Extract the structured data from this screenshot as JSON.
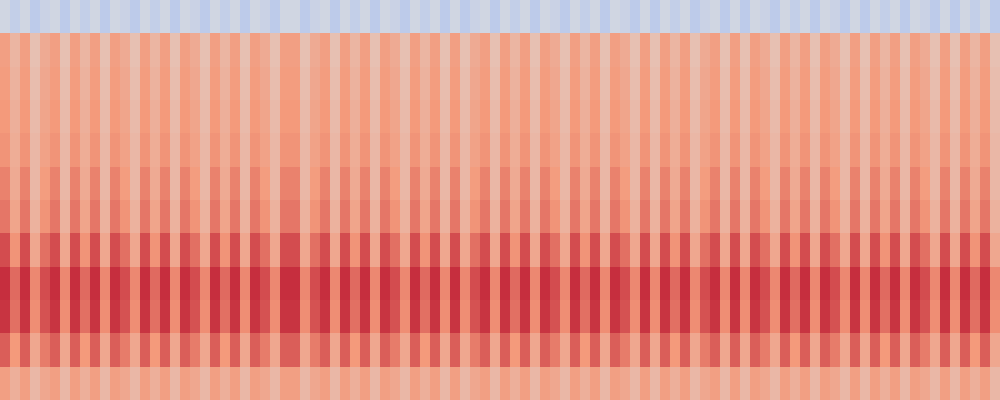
{
  "chart_data": {
    "type": "heatmap",
    "tick_labels": false,
    "grid": false,
    "zlim": [
      0,
      100
    ],
    "z": [
      [
        73,
        67,
        73,
        64,
        70,
        73,
        64,
        73,
        67,
        73,
        64,
        73,
        70,
        64,
        73,
        67,
        73,
        64,
        73,
        70,
        64,
        73,
        67,
        73,
        64,
        73,
        70,
        64,
        73,
        73,
        64,
        70,
        73,
        64,
        73,
        67,
        73,
        64,
        73,
        70,
        64,
        73,
        67,
        73,
        64,
        73,
        64,
        70,
        73,
        64,
        73,
        67,
        73,
        64,
        73,
        70,
        64,
        73,
        67,
        73,
        64,
        73,
        70,
        64,
        73,
        64,
        73,
        67,
        73,
        64,
        70,
        73,
        64,
        73,
        64,
        73,
        70,
        64,
        73,
        67,
        73,
        64,
        73,
        70,
        64,
        73,
        64,
        73,
        67,
        73,
        64,
        73,
        70,
        64,
        73,
        64,
        73,
        67,
        73,
        64
      ],
      [
        85,
        75,
        85,
        70,
        80,
        85,
        70,
        85,
        75,
        85,
        70,
        85,
        80,
        70,
        85,
        75,
        85,
        70,
        85,
        80,
        70,
        85,
        75,
        85,
        70,
        85,
        80,
        70,
        85,
        85,
        70,
        80,
        85,
        70,
        85,
        75,
        85,
        70,
        85,
        80,
        70,
        85,
        75,
        85,
        70,
        85,
        70,
        80,
        85,
        70,
        85,
        75,
        85,
        70,
        85,
        80,
        70,
        85,
        75,
        85,
        70,
        85,
        80,
        70,
        85,
        70,
        85,
        75,
        85,
        70,
        80,
        85,
        70,
        85,
        70,
        85,
        80,
        70,
        85,
        75,
        85,
        70,
        85,
        80,
        70,
        85,
        70,
        85,
        75,
        85,
        70,
        85,
        80,
        70,
        85,
        70,
        85,
        75,
        85,
        70
      ],
      [
        92,
        82,
        92,
        77,
        87,
        92,
        77,
        92,
        82,
        92,
        77,
        92,
        87,
        77,
        92,
        82,
        92,
        77,
        92,
        87,
        77,
        92,
        82,
        92,
        77,
        92,
        87,
        77,
        92,
        92,
        77,
        87,
        92,
        77,
        92,
        82,
        92,
        77,
        92,
        87,
        77,
        92,
        82,
        92,
        77,
        92,
        77,
        87,
        92,
        77,
        92,
        82,
        92,
        77,
        92,
        87,
        77,
        92,
        82,
        92,
        77,
        92,
        87,
        77,
        92,
        77,
        92,
        82,
        92,
        77,
        87,
        92,
        77,
        92,
        77,
        92,
        87,
        77,
        92,
        82,
        92,
        77,
        92,
        87,
        77,
        92,
        77,
        92,
        82,
        92,
        77,
        92,
        87,
        77,
        92,
        77,
        92,
        82,
        92,
        77
      ],
      [
        93,
        83,
        93,
        78,
        88,
        93,
        78,
        93,
        83,
        93,
        78,
        93,
        88,
        78,
        93,
        83,
        93,
        78,
        93,
        88,
        78,
        93,
        83,
        93,
        78,
        93,
        88,
        78,
        93,
        93,
        78,
        88,
        93,
        78,
        93,
        83,
        93,
        78,
        93,
        88,
        78,
        93,
        83,
        93,
        78,
        93,
        78,
        88,
        93,
        78,
        93,
        83,
        93,
        78,
        93,
        88,
        78,
        93,
        83,
        93,
        78,
        93,
        88,
        78,
        93,
        78,
        93,
        83,
        93,
        78,
        88,
        93,
        78,
        93,
        78,
        93,
        88,
        78,
        93,
        83,
        93,
        78,
        93,
        88,
        78,
        93,
        78,
        93,
        83,
        93,
        78,
        93,
        88,
        78,
        93,
        78,
        93,
        83,
        93,
        78
      ],
      [
        88,
        76,
        88,
        70,
        82,
        88,
        70,
        88,
        76,
        88,
        70,
        88,
        82,
        70,
        88,
        76,
        88,
        70,
        88,
        82,
        70,
        88,
        76,
        88,
        70,
        88,
        82,
        70,
        88,
        88,
        70,
        82,
        88,
        70,
        88,
        76,
        88,
        70,
        88,
        82,
        70,
        88,
        76,
        88,
        70,
        88,
        70,
        82,
        88,
        70,
        88,
        76,
        88,
        70,
        88,
        82,
        70,
        88,
        76,
        88,
        70,
        88,
        82,
        70,
        88,
        70,
        88,
        76,
        88,
        70,
        82,
        88,
        70,
        88,
        70,
        88,
        82,
        70,
        88,
        76,
        88,
        70,
        88,
        82,
        70,
        88,
        70,
        88,
        76,
        88,
        70,
        88,
        82,
        70,
        88,
        70,
        88,
        76,
        88,
        70
      ],
      [
        81,
        71,
        81,
        66,
        76,
        81,
        66,
        81,
        71,
        81,
        66,
        81,
        76,
        66,
        81,
        71,
        81,
        66,
        81,
        76,
        66,
        81,
        71,
        81,
        66,
        81,
        76,
        66,
        81,
        81,
        66,
        76,
        81,
        66,
        81,
        71,
        81,
        66,
        81,
        76,
        66,
        81,
        71,
        81,
        66,
        81,
        66,
        76,
        81,
        66,
        81,
        71,
        81,
        66,
        81,
        76,
        66,
        81,
        71,
        81,
        66,
        81,
        76,
        66,
        81,
        66,
        81,
        71,
        81,
        66,
        76,
        81,
        66,
        81,
        66,
        81,
        76,
        66,
        81,
        71,
        81,
        66,
        81,
        76,
        66,
        81,
        66,
        81,
        71,
        81,
        66,
        81,
        76,
        66,
        81,
        66,
        81,
        71,
        81,
        66
      ],
      [
        79,
        69,
        79,
        64,
        74,
        79,
        64,
        79,
        69,
        79,
        64,
        79,
        74,
        64,
        79,
        69,
        79,
        64,
        79,
        74,
        64,
        79,
        69,
        79,
        64,
        79,
        74,
        64,
        79,
        79,
        64,
        74,
        79,
        64,
        79,
        69,
        79,
        64,
        79,
        74,
        64,
        79,
        69,
        79,
        64,
        79,
        64,
        74,
        79,
        64,
        79,
        69,
        79,
        64,
        79,
        74,
        64,
        79,
        69,
        79,
        64,
        79,
        74,
        64,
        79,
        64,
        79,
        69,
        79,
        64,
        74,
        79,
        64,
        79,
        64,
        79,
        74,
        64,
        79,
        69,
        79,
        64,
        79,
        74,
        64,
        79,
        64,
        79,
        69,
        79,
        64,
        79,
        74,
        64,
        79,
        64,
        79,
        69,
        79,
        64
      ],
      [
        76,
        68,
        76,
        64,
        72,
        76,
        64,
        76,
        68,
        76,
        64,
        76,
        72,
        64,
        76,
        68,
        76,
        64,
        76,
        72,
        64,
        76,
        68,
        76,
        64,
        76,
        72,
        64,
        76,
        76,
        64,
        72,
        76,
        64,
        76,
        68,
        76,
        64,
        76,
        72,
        64,
        76,
        68,
        76,
        64,
        76,
        64,
        72,
        76,
        64,
        76,
        68,
        76,
        64,
        76,
        72,
        64,
        76,
        68,
        76,
        64,
        76,
        72,
        64,
        76,
        64,
        76,
        68,
        76,
        64,
        72,
        76,
        64,
        76,
        64,
        76,
        72,
        64,
        76,
        68,
        76,
        64,
        76,
        72,
        64,
        76,
        64,
        76,
        68,
        76,
        64,
        76,
        72,
        64,
        76,
        64,
        76,
        68,
        76,
        64
      ],
      [
        75,
        67,
        75,
        63,
        71,
        75,
        63,
        75,
        67,
        75,
        63,
        75,
        71,
        63,
        75,
        67,
        75,
        63,
        75,
        71,
        63,
        75,
        67,
        75,
        63,
        75,
        71,
        63,
        75,
        75,
        63,
        71,
        75,
        63,
        75,
        67,
        75,
        63,
        75,
        71,
        63,
        75,
        67,
        75,
        63,
        75,
        63,
        71,
        75,
        63,
        75,
        67,
        75,
        63,
        75,
        71,
        63,
        75,
        67,
        75,
        63,
        75,
        71,
        63,
        75,
        63,
        75,
        67,
        75,
        63,
        71,
        75,
        63,
        75,
        63,
        75,
        71,
        63,
        75,
        67,
        75,
        63,
        75,
        71,
        63,
        75,
        63,
        75,
        67,
        75,
        63,
        75,
        71,
        63,
        75,
        63,
        75,
        67,
        75,
        63
      ],
      [
        74,
        66,
        74,
        62,
        70,
        74,
        62,
        74,
        66,
        74,
        62,
        74,
        70,
        62,
        74,
        66,
        74,
        62,
        74,
        70,
        62,
        74,
        66,
        74,
        62,
        74,
        70,
        62,
        74,
        74,
        62,
        70,
        74,
        62,
        74,
        66,
        74,
        62,
        74,
        70,
        62,
        74,
        66,
        74,
        62,
        74,
        62,
        70,
        74,
        62,
        74,
        66,
        74,
        62,
        74,
        70,
        62,
        74,
        66,
        74,
        62,
        74,
        70,
        62,
        74,
        62,
        74,
        66,
        74,
        62,
        70,
        74,
        62,
        74,
        62,
        74,
        70,
        62,
        74,
        66,
        74,
        62,
        74,
        70,
        62,
        74,
        62,
        74,
        66,
        74,
        62,
        74,
        70,
        62,
        74,
        62,
        74,
        66,
        74,
        62
      ],
      [
        73,
        65,
        73,
        61,
        69,
        73,
        61,
        73,
        65,
        73,
        61,
        73,
        69,
        61,
        73,
        65,
        73,
        61,
        73,
        69,
        61,
        73,
        65,
        73,
        61,
        73,
        69,
        61,
        73,
        73,
        61,
        69,
        73,
        61,
        73,
        65,
        73,
        61,
        73,
        69,
        61,
        73,
        65,
        73,
        61,
        73,
        61,
        69,
        73,
        61,
        73,
        65,
        73,
        61,
        73,
        69,
        61,
        73,
        65,
        73,
        61,
        73,
        69,
        61,
        73,
        61,
        73,
        65,
        73,
        61,
        69,
        73,
        61,
        73,
        61,
        73,
        69,
        61,
        73,
        65,
        73,
        61,
        73,
        69,
        61,
        73,
        61,
        73,
        65,
        73,
        61,
        73,
        69,
        61,
        73,
        61,
        73,
        65,
        73,
        61
      ],
      [
        46,
        42,
        46,
        40,
        44,
        46,
        40,
        46,
        42,
        46,
        40,
        46,
        44,
        40,
        46,
        42,
        46,
        40,
        46,
        44,
        40,
        46,
        42,
        46,
        40,
        46,
        44,
        40,
        46,
        46,
        40,
        44,
        46,
        40,
        46,
        42,
        46,
        40,
        46,
        44,
        40,
        46,
        42,
        46,
        40,
        46,
        40,
        44,
        46,
        40,
        46,
        42,
        46,
        40,
        46,
        44,
        40,
        46,
        42,
        46,
        40,
        46,
        44,
        40,
        46,
        40,
        46,
        42,
        46,
        40,
        44,
        46,
        40,
        46,
        40,
        46,
        44,
        40,
        46,
        42,
        46,
        40,
        46,
        44,
        40,
        46,
        40,
        46,
        42,
        46,
        40,
        46,
        44,
        40,
        46,
        40,
        46,
        42,
        46,
        40
      ]
    ]
  }
}
